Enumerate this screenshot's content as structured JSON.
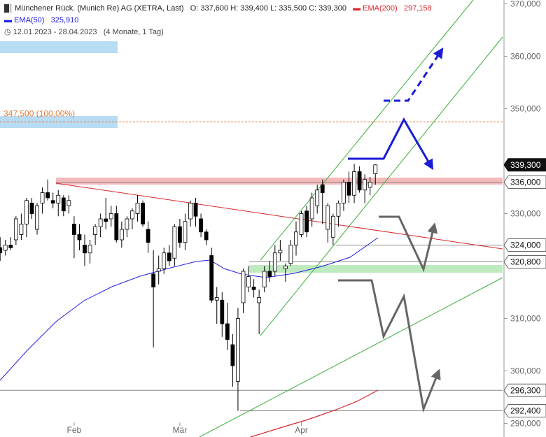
{
  "header": {
    "title": "Münchener Rück. (Munich Re) AG (XETRA, Last)",
    "ohlc": "O: 337,600  H: 339,400  L: 335,500  C: 339,300",
    "ema200_label": "EMA(200)",
    "ema200_value": "297,158",
    "ema50_label": "EMA(50)",
    "ema50_value": "325,910",
    "date_range": "12.01.2023 - 28.04.2023",
    "period": "(4 Monate, 1 Tag)"
  },
  "colors": {
    "ema50": "#1f1fe0",
    "ema200": "#d8262d",
    "channel": "#3cae3c",
    "resistance_zone": "#f4b9b9",
    "support_zone": "#bfeabf",
    "target_zone": "#b8dcf3",
    "scenario_bull": "#1b1bd8",
    "scenario_bear": "#666666",
    "target_line": "#e07b39",
    "last_price_badge": "#111111"
  },
  "chart_data": {
    "type": "candlestick",
    "title": "Münchener Rück. (Munich Re) AG (XETRA, Last)",
    "ylim": [
      289000,
      370000
    ],
    "y_ticks": [
      {
        "v": 290000,
        "label": "290,000"
      },
      {
        "v": 300000,
        "label": "300,000"
      },
      {
        "v": 310000,
        "label": "310,000"
      },
      {
        "v": 330000,
        "label": "330,000"
      },
      {
        "v": 350000,
        "label": "350,000"
      },
      {
        "v": 360000,
        "label": "360,000"
      },
      {
        "v": 370000,
        "label": "370,000"
      }
    ],
    "x_ticks": [
      {
        "i": 14,
        "label": "Feb"
      },
      {
        "i": 34,
        "label": "Mär"
      },
      {
        "i": 57,
        "label": "Apr"
      }
    ],
    "price_levels": [
      {
        "v": 339300,
        "label": "339,300",
        "style": "last"
      },
      {
        "v": 336000,
        "label": "336,000",
        "style": "level"
      },
      {
        "v": 324000,
        "label": "324,000",
        "style": "level"
      },
      {
        "v": 320800,
        "label": "320,800",
        "style": "level"
      },
      {
        "v": 296300,
        "label": "296,300",
        "style": "level"
      },
      {
        "v": 292400,
        "label": "292,400",
        "style": "level"
      }
    ],
    "target": {
      "v": 347500,
      "label": "347,500 (100,00%)"
    },
    "candles": [
      {
        "o": 323.5,
        "h": 325.5,
        "l": 321.0,
        "c": 322.5
      },
      {
        "o": 323.0,
        "h": 325.0,
        "l": 322.0,
        "c": 324.0
      },
      {
        "o": 324.0,
        "h": 325.5,
        "l": 323.0,
        "c": 323.5
      },
      {
        "o": 325.0,
        "h": 329.5,
        "l": 324.0,
        "c": 329.0
      },
      {
        "o": 326.0,
        "h": 330.0,
        "l": 325.0,
        "c": 328.0
      },
      {
        "o": 328.0,
        "h": 333.0,
        "l": 325.5,
        "c": 332.5
      },
      {
        "o": 332.0,
        "h": 333.0,
        "l": 329.0,
        "c": 330.0
      },
      {
        "o": 327.0,
        "h": 332.0,
        "l": 326.0,
        "c": 331.5
      },
      {
        "o": 332.0,
        "h": 335.0,
        "l": 330.0,
        "c": 334.0
      },
      {
        "o": 334.0,
        "h": 336.5,
        "l": 332.5,
        "c": 333.0
      },
      {
        "o": 332.5,
        "h": 334.0,
        "l": 331.0,
        "c": 332.0
      },
      {
        "o": 332.0,
        "h": 334.5,
        "l": 329.5,
        "c": 333.5
      },
      {
        "o": 333.0,
        "h": 333.5,
        "l": 329.5,
        "c": 330.5
      },
      {
        "o": 331.5,
        "h": 333.5,
        "l": 330.0,
        "c": 332.5
      },
      {
        "o": 328.0,
        "h": 329.5,
        "l": 321.5,
        "c": 326.0
      },
      {
        "o": 326.0,
        "h": 328.0,
        "l": 323.0,
        "c": 325.0
      },
      {
        "o": 324.0,
        "h": 326.0,
        "l": 320.0,
        "c": 322.5
      },
      {
        "o": 322.5,
        "h": 325.0,
        "l": 320.5,
        "c": 324.0
      },
      {
        "o": 326.0,
        "h": 328.0,
        "l": 324.0,
        "c": 327.5
      },
      {
        "o": 327.5,
        "h": 330.0,
        "l": 325.5,
        "c": 329.0
      },
      {
        "o": 329.0,
        "h": 333.0,
        "l": 327.0,
        "c": 328.5
      },
      {
        "o": 329.0,
        "h": 331.5,
        "l": 327.5,
        "c": 330.0
      },
      {
        "o": 330.0,
        "h": 331.5,
        "l": 324.5,
        "c": 325.0
      },
      {
        "o": 325.0,
        "h": 328.5,
        "l": 323.5,
        "c": 327.0
      },
      {
        "o": 327.0,
        "h": 329.5,
        "l": 325.5,
        "c": 329.0
      },
      {
        "o": 329.0,
        "h": 331.0,
        "l": 327.0,
        "c": 330.5
      },
      {
        "o": 330.0,
        "h": 333.5,
        "l": 328.5,
        "c": 332.0
      },
      {
        "o": 332.0,
        "h": 332.5,
        "l": 327.5,
        "c": 328.0
      },
      {
        "o": 327.0,
        "h": 328.5,
        "l": 322.5,
        "c": 324.5
      },
      {
        "o": 318.5,
        "h": 323.0,
        "l": 304.5,
        "c": 316.0
      },
      {
        "o": 319.0,
        "h": 322.0,
        "l": 316.5,
        "c": 319.5
      },
      {
        "o": 319.5,
        "h": 323.5,
        "l": 318.5,
        "c": 322.5
      },
      {
        "o": 322.5,
        "h": 324.0,
        "l": 320.0,
        "c": 321.0
      },
      {
        "o": 321.5,
        "h": 328.0,
        "l": 320.0,
        "c": 327.5
      },
      {
        "o": 327.5,
        "h": 329.0,
        "l": 323.5,
        "c": 324.5
      },
      {
        "o": 324.5,
        "h": 330.0,
        "l": 323.0,
        "c": 328.5
      },
      {
        "o": 329.0,
        "h": 332.5,
        "l": 327.5,
        "c": 332.0
      },
      {
        "o": 332.0,
        "h": 333.0,
        "l": 327.5,
        "c": 329.5
      },
      {
        "o": 329.0,
        "h": 330.0,
        "l": 325.5,
        "c": 326.5
      },
      {
        "o": 326.5,
        "h": 327.0,
        "l": 324.0,
        "c": 325.0
      },
      {
        "o": 322.0,
        "h": 323.5,
        "l": 313.0,
        "c": 313.5
      },
      {
        "o": 313.5,
        "h": 316.0,
        "l": 309.0,
        "c": 314.0
      },
      {
        "o": 313.5,
        "h": 315.0,
        "l": 306.5,
        "c": 309.0
      },
      {
        "o": 309.0,
        "h": 313.0,
        "l": 304.0,
        "c": 306.0
      },
      {
        "o": 305.0,
        "h": 307.0,
        "l": 297.0,
        "c": 301.0
      },
      {
        "o": 298.0,
        "h": 312.0,
        "l": 292.4,
        "c": 310.0
      },
      {
        "o": 313.0,
        "h": 319.5,
        "l": 311.0,
        "c": 319.0
      },
      {
        "o": 316.0,
        "h": 320.0,
        "l": 315.0,
        "c": 318.0
      },
      {
        "o": 316.0,
        "h": 317.5,
        "l": 314.0,
        "c": 315.5
      },
      {
        "o": 313.0,
        "h": 315.5,
        "l": 307.0,
        "c": 314.0
      },
      {
        "o": 316.0,
        "h": 320.0,
        "l": 315.0,
        "c": 319.0
      },
      {
        "o": 319.0,
        "h": 321.0,
        "l": 317.0,
        "c": 318.0
      },
      {
        "o": 319.0,
        "h": 324.0,
        "l": 318.0,
        "c": 322.5
      },
      {
        "o": 322.5,
        "h": 325.0,
        "l": 321.0,
        "c": 323.0
      },
      {
        "o": 319.5,
        "h": 320.5,
        "l": 317.0,
        "c": 320.0
      },
      {
        "o": 320.5,
        "h": 325.0,
        "l": 320.0,
        "c": 324.0
      },
      {
        "o": 324.0,
        "h": 328.5,
        "l": 322.0,
        "c": 326.5
      },
      {
        "o": 326.0,
        "h": 330.5,
        "l": 325.5,
        "c": 330.0
      },
      {
        "o": 330.5,
        "h": 331.5,
        "l": 325.5,
        "c": 326.5
      },
      {
        "o": 329.0,
        "h": 334.0,
        "l": 327.5,
        "c": 333.0
      },
      {
        "o": 331.5,
        "h": 335.5,
        "l": 330.0,
        "c": 334.5
      },
      {
        "o": 335.5,
        "h": 336.5,
        "l": 328.0,
        "c": 334.0
      },
      {
        "o": 327.0,
        "h": 332.0,
        "l": 324.5,
        "c": 331.5
      },
      {
        "o": 325.5,
        "h": 330.0,
        "l": 324.0,
        "c": 329.5
      },
      {
        "o": 329.5,
        "h": 332.5,
        "l": 327.5,
        "c": 332.0
      },
      {
        "o": 332.0,
        "h": 336.5,
        "l": 330.5,
        "c": 336.0
      },
      {
        "o": 336.0,
        "h": 338.0,
        "l": 332.0,
        "c": 333.5
      },
      {
        "o": 333.5,
        "h": 339.5,
        "l": 332.0,
        "c": 338.0
      },
      {
        "o": 338.0,
        "h": 339.0,
        "l": 334.0,
        "c": 334.5
      },
      {
        "o": 334.5,
        "h": 337.5,
        "l": 332.0,
        "c": 336.5
      },
      {
        "o": 335.0,
        "h": 337.0,
        "l": 333.5,
        "c": 336.0
      },
      {
        "o": 337.6,
        "h": 339.4,
        "l": 335.5,
        "c": 339.3
      }
    ]
  }
}
